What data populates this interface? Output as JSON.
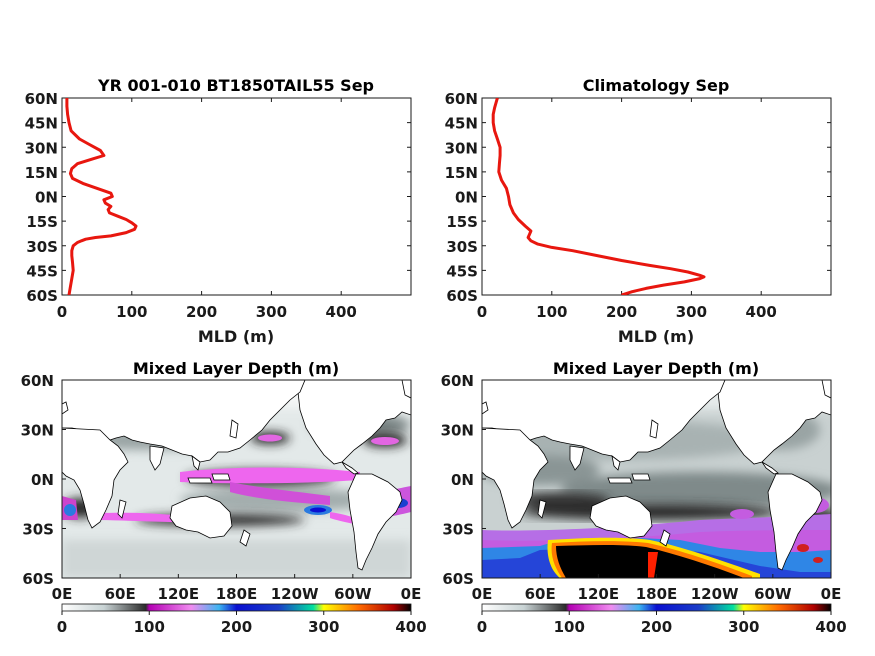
{
  "chart_data": [
    {
      "type": "line",
      "title": "YR 001-010 BT1850TAIL55 Sep",
      "xlabel": "MLD (m)",
      "xlim": [
        0,
        500
      ],
      "x_ticks": [
        "0",
        "100",
        "200",
        "300",
        "400"
      ],
      "ylim": [
        -60,
        60
      ],
      "y_ticks": [
        "60N",
        "45N",
        "30N",
        "15N",
        "0N",
        "15S",
        "30S",
        "45S",
        "60S"
      ],
      "color": "#e8170f",
      "series": [
        {
          "lat": [
            60,
            55,
            50,
            45,
            40,
            35,
            32,
            28,
            25,
            23,
            20,
            17,
            14,
            11,
            8,
            5,
            2,
            0,
            -2,
            -4,
            -6,
            -8,
            -10,
            -12,
            -14,
            -16,
            -18,
            -20,
            -22,
            -24,
            -25,
            -26,
            -27,
            -28,
            -30,
            -33,
            -36,
            -40,
            -45,
            -50,
            -55,
            -60
          ],
          "mld": [
            7,
            7,
            8,
            10,
            13,
            25,
            38,
            55,
            60,
            45,
            22,
            14,
            12,
            15,
            30,
            50,
            70,
            72,
            60,
            62,
            70,
            66,
            68,
            80,
            92,
            100,
            106,
            104,
            92,
            70,
            48,
            34,
            28,
            22,
            16,
            14,
            14,
            15,
            16,
            14,
            12,
            10
          ]
        }
      ]
    },
    {
      "type": "line",
      "title": "Climatology Sep",
      "xlabel": "MLD (m)",
      "xlim": [
        0,
        500
      ],
      "x_ticks": [
        "0",
        "100",
        "200",
        "300",
        "400"
      ],
      "ylim": [
        -60,
        60
      ],
      "y_ticks": [
        "60N",
        "45N",
        "30N",
        "15N",
        "0N",
        "15S",
        "30S",
        "45S",
        "60S"
      ],
      "color": "#e8170f",
      "series": [
        {
          "lat": [
            60,
            57,
            54,
            50,
            45,
            40,
            35,
            30,
            25,
            20,
            15,
            10,
            5,
            0,
            -5,
            -10,
            -14,
            -18,
            -21,
            -23,
            -25,
            -27,
            -29,
            -31,
            -33,
            -36,
            -39,
            -42,
            -44,
            -46,
            -48,
            -49,
            -50,
            -52,
            -54,
            -56,
            -58,
            -60
          ],
          "mld": [
            22,
            20,
            18,
            16,
            16,
            18,
            22,
            26,
            26,
            25,
            24,
            28,
            35,
            38,
            40,
            45,
            52,
            62,
            70,
            68,
            66,
            70,
            80,
            100,
            130,
            165,
            200,
            240,
            270,
            295,
            312,
            318,
            312,
            290,
            260,
            235,
            215,
            200
          ]
        }
      ]
    },
    {
      "type": "heatmap",
      "title": "Mixed Layer Depth (m)",
      "x_ticks": [
        "0E",
        "60E",
        "120E",
        "180E",
        "120W",
        "60W",
        "0E"
      ],
      "y_ticks": [
        "60N",
        "30N",
        "0N",
        "30S",
        "60S"
      ],
      "colorbar_ticks": [
        "0",
        "100",
        "200",
        "300",
        "400"
      ],
      "clim": [
        0,
        400
      ]
    },
    {
      "type": "heatmap",
      "title": "Mixed Layer Depth (m)",
      "x_ticks": [
        "0E",
        "60E",
        "120E",
        "180E",
        "120W",
        "60W",
        "0E"
      ],
      "y_ticks": [
        "60N",
        "30N",
        "0N",
        "30S",
        "60S"
      ],
      "colorbar_ticks": [
        "0",
        "100",
        "200",
        "300",
        "400"
      ],
      "clim": [
        0,
        400
      ]
    }
  ]
}
